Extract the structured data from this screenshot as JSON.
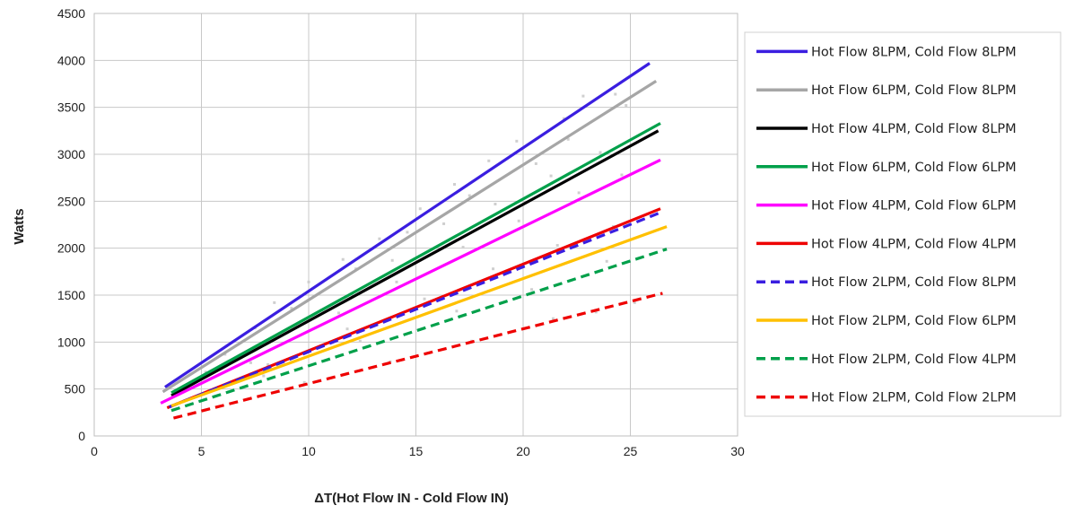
{
  "chart_data": {
    "type": "line",
    "title": "",
    "xlabel": "ΔT(Hot Flow IN - Cold Flow IN)",
    "ylabel": "Watts",
    "xlim": [
      0,
      30
    ],
    "ylim": [
      0,
      4500
    ],
    "xticks": [
      0,
      5,
      10,
      15,
      20,
      25,
      30
    ],
    "yticks": [
      0,
      500,
      1000,
      1500,
      2000,
      2500,
      3000,
      3500,
      4000,
      4500
    ],
    "grid": true,
    "legend_position": "right",
    "series": [
      {
        "name": "Hot Flow 8LPM, Cold Flow 8LPM",
        "color": "#3a1ee0",
        "dashed": false,
        "x": [
          3.3,
          25.9
        ],
        "y": [
          520,
          3970
        ]
      },
      {
        "name": "Hot Flow 6LPM, Cold Flow 8LPM",
        "color": "#a6a6a6",
        "dashed": false,
        "x": [
          3.2,
          26.2
        ],
        "y": [
          470,
          3780
        ]
      },
      {
        "name": "Hot Flow 4LPM, Cold Flow 8LPM",
        "color": "#000000",
        "dashed": false,
        "x": [
          3.6,
          26.3
        ],
        "y": [
          430,
          3250
        ]
      },
      {
        "name": "Hot Flow 6LPM, Cold Flow 6LPM",
        "color": "#00a04a",
        "dashed": false,
        "x": [
          3.6,
          26.4
        ],
        "y": [
          460,
          3330
        ]
      },
      {
        "name": "Hot Flow 4LPM, Cold Flow 6LPM",
        "color": "#ff00ff",
        "dashed": false,
        "x": [
          3.1,
          26.4
        ],
        "y": [
          350,
          2940
        ]
      },
      {
        "name": "Hot Flow 4LPM, Cold Flow 4LPM",
        "color": "#ee0000",
        "dashed": false,
        "x": [
          3.4,
          26.4
        ],
        "y": [
          300,
          2420
        ]
      },
      {
        "name": "Hot Flow 2LPM, Cold Flow 8LPM",
        "color": "#3a1ee0",
        "dashed": true,
        "x": [
          3.5,
          26.3
        ],
        "y": [
          310,
          2370
        ]
      },
      {
        "name": "Hot Flow 2LPM, Cold Flow 6LPM",
        "color": "#ffc000",
        "dashed": false,
        "x": [
          3.6,
          26.7
        ],
        "y": [
          320,
          2230
        ]
      },
      {
        "name": "Hot Flow 2LPM, Cold Flow 4LPM",
        "color": "#00a04a",
        "dashed": true,
        "x": [
          3.6,
          26.7
        ],
        "y": [
          270,
          1990
        ]
      },
      {
        "name": "Hot Flow 2LPM, Cold Flow 2LPM",
        "color": "#ee0000",
        "dashed": true,
        "x": [
          3.7,
          26.5
        ],
        "y": [
          190,
          1520
        ]
      }
    ],
    "scatter_color": "#cfcfcf",
    "scatter_points": [
      [
        5.2,
        680
      ],
      [
        7.5,
        1150
      ],
      [
        8.4,
        1420
      ],
      [
        10.0,
        1640
      ],
      [
        11.6,
        1880
      ],
      [
        13.3,
        2100
      ],
      [
        15.2,
        2420
      ],
      [
        16.8,
        2680
      ],
      [
        18.4,
        2930
      ],
      [
        19.7,
        3140
      ],
      [
        21.9,
        3380
      ],
      [
        22.8,
        3620
      ],
      [
        24.3,
        3640
      ],
      [
        6.1,
        870
      ],
      [
        9.2,
        1360
      ],
      [
        12.2,
        1780
      ],
      [
        14.6,
        2170
      ],
      [
        17.5,
        2560
      ],
      [
        20.6,
        2900
      ],
      [
        22.1,
        3160
      ],
      [
        24.8,
        3520
      ],
      [
        6.8,
        860
      ],
      [
        10.6,
        1340
      ],
      [
        13.9,
        1870
      ],
      [
        16.3,
        2260
      ],
      [
        18.7,
        2470
      ],
      [
        21.3,
        2770
      ],
      [
        23.6,
        3020
      ],
      [
        7.3,
        780
      ],
      [
        11.4,
        1310
      ],
      [
        14.1,
        1640
      ],
      [
        17.2,
        2010
      ],
      [
        19.8,
        2290
      ],
      [
        22.6,
        2590
      ],
      [
        24.6,
        2780
      ],
      [
        8.1,
        760
      ],
      [
        11.8,
        1140
      ],
      [
        15.4,
        1460
      ],
      [
        18.6,
        1780
      ],
      [
        21.6,
        2030
      ],
      [
        24.2,
        2230
      ],
      [
        7.9,
        640
      ],
      [
        12.4,
        1010
      ],
      [
        16.9,
        1330
      ],
      [
        20.4,
        1560
      ],
      [
        23.9,
        1860
      ],
      [
        9.8,
        570
      ],
      [
        13.8,
        790
      ],
      [
        17.6,
        1010
      ],
      [
        21.4,
        1250
      ],
      [
        23.4,
        1320
      ],
      [
        25.2,
        1420
      ]
    ]
  }
}
